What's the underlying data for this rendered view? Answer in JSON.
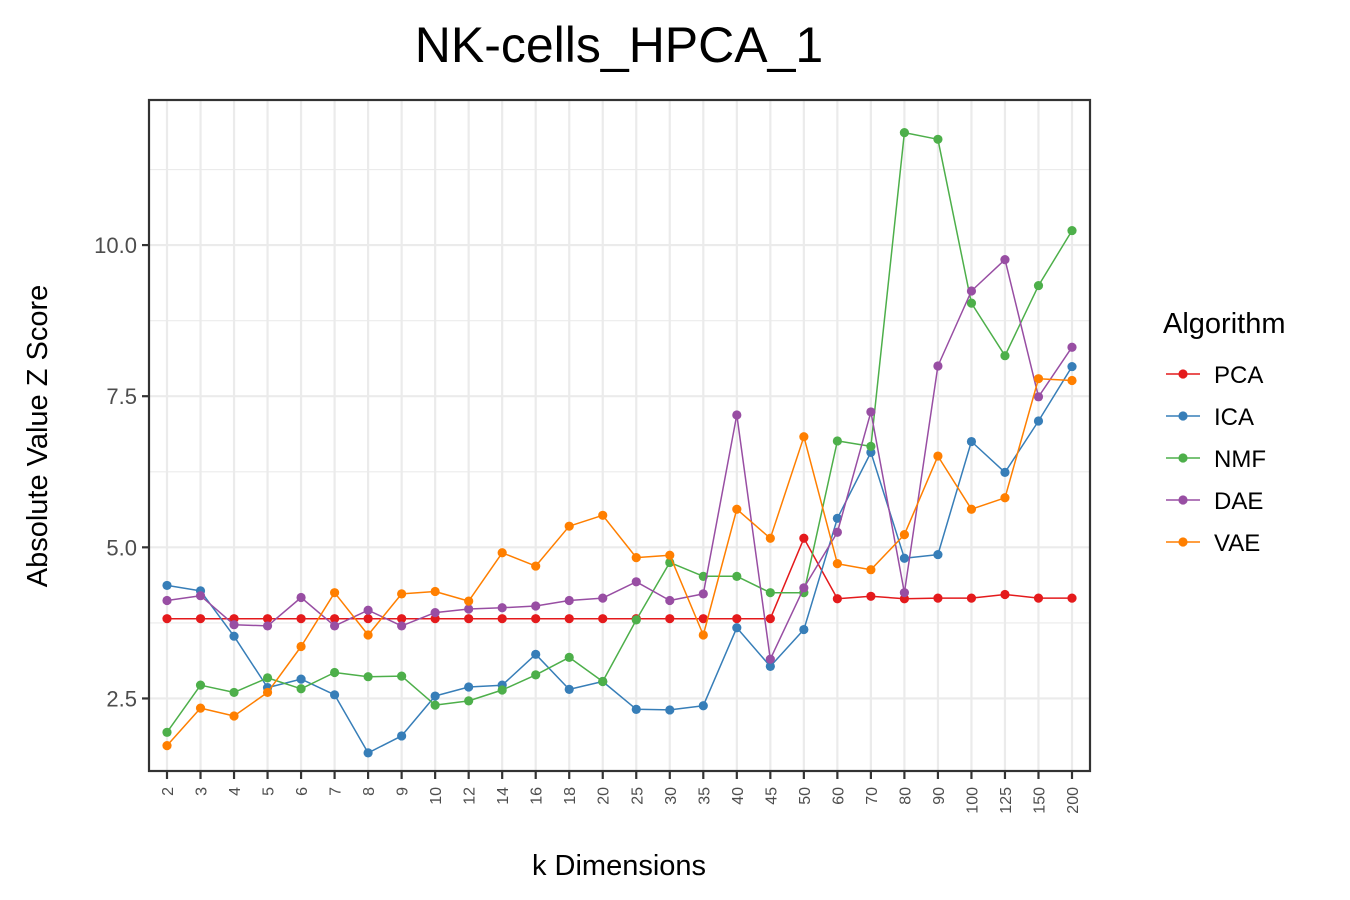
{
  "chart_data": {
    "type": "line",
    "title": "NK-cells_HPCA_1",
    "xlabel": "k Dimensions",
    "ylabel": "Absolute Value Z Score",
    "categories": [
      "2",
      "3",
      "4",
      "5",
      "6",
      "7",
      "8",
      "9",
      "10",
      "12",
      "14",
      "16",
      "18",
      "20",
      "25",
      "30",
      "35",
      "40",
      "45",
      "50",
      "60",
      "70",
      "80",
      "90",
      "100",
      "125",
      "150",
      "200"
    ],
    "ylim": [
      1.3,
      12.4
    ],
    "yticks": [
      2.5,
      5.0,
      7.5,
      10.0
    ],
    "ytick_labels": [
      "2.5",
      "5.0",
      "7.5",
      "10.0"
    ],
    "grid": true,
    "legend": {
      "title": "Algorithm",
      "position": "right"
    },
    "series": [
      {
        "name": "PCA",
        "color": "#e41a1c",
        "values": [
          3.82,
          3.82,
          3.82,
          3.82,
          3.82,
          3.82,
          3.82,
          3.82,
          3.82,
          3.82,
          3.82,
          3.82,
          3.82,
          3.82,
          3.82,
          3.82,
          3.82,
          3.82,
          3.82,
          5.15,
          4.15,
          4.19,
          4.15,
          4.16,
          4.16,
          4.22,
          4.16,
          4.16
        ]
      },
      {
        "name": "ICA",
        "color": "#377eb8",
        "values": [
          4.37,
          4.28,
          3.53,
          2.68,
          2.82,
          2.56,
          1.6,
          1.88,
          2.54,
          2.69,
          2.72,
          3.23,
          2.65,
          2.78,
          2.32,
          2.31,
          2.38,
          3.67,
          3.03,
          3.64,
          5.48,
          6.57,
          4.82,
          4.88,
          6.75,
          6.24,
          7.09,
          7.99
        ]
      },
      {
        "name": "NMF",
        "color": "#4daf4a",
        "values": [
          1.94,
          2.72,
          2.6,
          2.84,
          2.66,
          2.93,
          2.86,
          2.87,
          2.39,
          2.46,
          2.64,
          2.89,
          3.18,
          2.78,
          3.8,
          4.75,
          4.52,
          4.52,
          4.25,
          4.25,
          6.76,
          6.67,
          11.86,
          11.75,
          9.04,
          8.17,
          9.33,
          10.24
        ]
      },
      {
        "name": "DAE",
        "color": "#984ea3",
        "values": [
          4.12,
          4.2,
          3.72,
          3.7,
          4.17,
          3.7,
          3.96,
          3.7,
          3.92,
          3.98,
          4.0,
          4.03,
          4.12,
          4.16,
          4.43,
          4.12,
          4.23,
          7.19,
          3.15,
          4.33,
          5.25,
          7.24,
          4.25,
          8.0,
          9.24,
          9.76,
          7.49,
          8.31
        ]
      },
      {
        "name": "VAE",
        "color": "#ff7f00",
        "values": [
          1.72,
          2.34,
          2.21,
          2.6,
          3.36,
          4.25,
          3.55,
          4.23,
          4.27,
          4.11,
          4.91,
          4.69,
          5.35,
          5.53,
          4.83,
          4.87,
          3.55,
          5.63,
          5.15,
          6.83,
          4.73,
          4.63,
          5.21,
          6.51,
          5.63,
          5.82,
          7.79,
          7.76
        ]
      }
    ]
  }
}
